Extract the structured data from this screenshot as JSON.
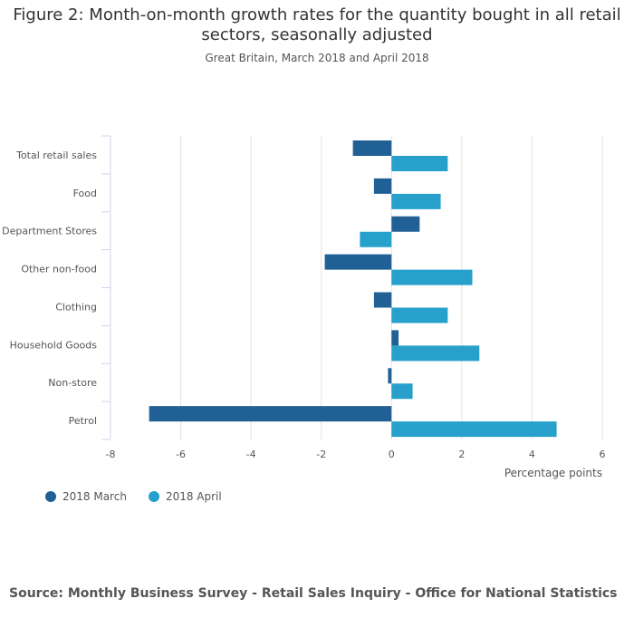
{
  "chart_data": {
    "type": "bar",
    "orientation": "horizontal",
    "title": "Figure 2: Month-on-month growth rates for the quantity bought in all retail sectors, seasonally adjusted",
    "subtitle": "Great Britain, March 2018 and April 2018",
    "categories": [
      "Total retail sales",
      "Food",
      "Department Stores",
      "Other non-food",
      "Clothing",
      "Household Goods",
      "Non-store",
      "Petrol"
    ],
    "series": [
      {
        "name": "2018 March",
        "color": "#206095",
        "values": [
          -1.1,
          -0.5,
          0.8,
          -1.9,
          -0.5,
          0.2,
          -0.1,
          -6.9
        ]
      },
      {
        "name": "2018 April",
        "color": "#27a0cc",
        "values": [
          1.6,
          1.4,
          -0.9,
          2.3,
          1.6,
          2.5,
          0.6,
          4.7
        ]
      }
    ],
    "xlabel": "Percentage points",
    "xlim": [
      -8,
      6
    ],
    "xticks": [
      -8,
      -6,
      -4,
      -2,
      0,
      2,
      4,
      6
    ],
    "grid": true,
    "legend": "bottom-left"
  },
  "source": "Source: Monthly Business Survey - Retail Sales Inquiry - Office for National Statistics"
}
